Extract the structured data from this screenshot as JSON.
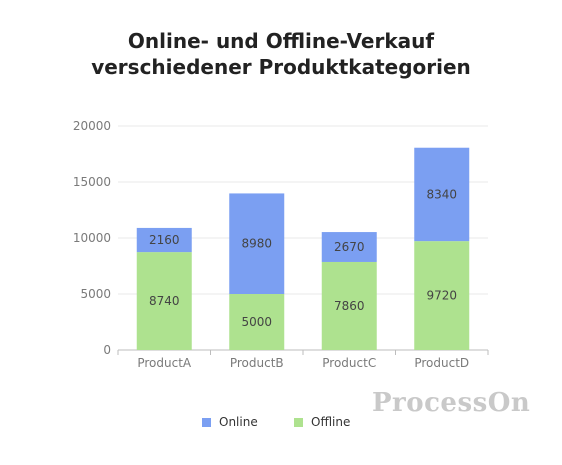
{
  "chart_data": {
    "type": "bar",
    "stacked": true,
    "title_lines": [
      "Online- und Offline-Verkauf",
      "verschiedener Produktkategorien"
    ],
    "categories": [
      "ProductA",
      "ProductB",
      "ProductC",
      "ProductD"
    ],
    "series": [
      {
        "name": "Offline",
        "color": "#aee28f",
        "values": [
          8740,
          5000,
          7860,
          9720
        ]
      },
      {
        "name": "Online",
        "color": "#7b9ff2",
        "values": [
          2160,
          8980,
          2670,
          8340
        ]
      }
    ],
    "legend_order": [
      "Online",
      "Offline"
    ],
    "ylim": [
      0,
      20000
    ],
    "yticks": [
      "0",
      "5000",
      "10000",
      "15000",
      "20000"
    ],
    "grid": true,
    "legend_position": "bottom"
  },
  "watermark": "ProcessOn"
}
